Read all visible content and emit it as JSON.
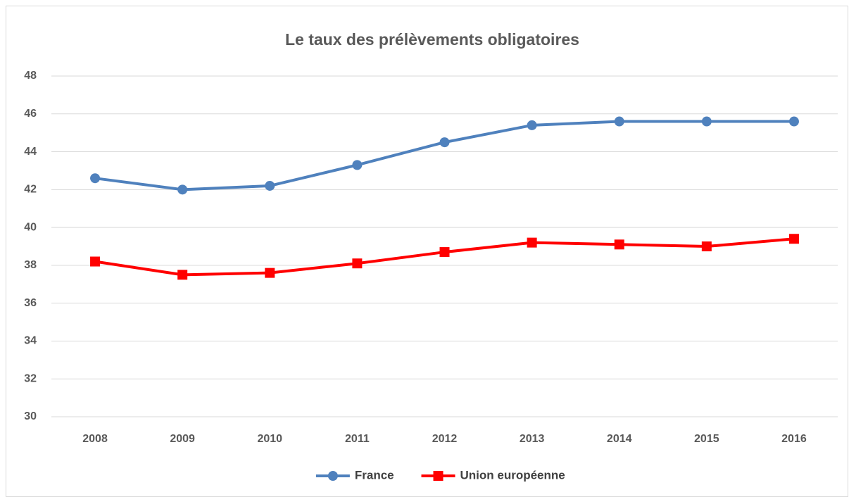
{
  "chart_data": {
    "type": "line",
    "title": "Le taux des prélèvements obligatoires",
    "categories": [
      "2008",
      "2009",
      "2010",
      "2011",
      "2012",
      "2013",
      "2014",
      "2015",
      "2016"
    ],
    "series": [
      {
        "name": "France",
        "color": "#4f81bd",
        "marker": "circle",
        "values": [
          42.6,
          42.0,
          42.2,
          43.3,
          44.5,
          45.4,
          45.6,
          45.6,
          45.6
        ]
      },
      {
        "name": "Union européenne",
        "color": "#ff0000",
        "marker": "square",
        "values": [
          38.2,
          37.5,
          37.6,
          38.1,
          38.7,
          39.2,
          39.1,
          39.0,
          39.4
        ]
      }
    ],
    "ylim": [
      30,
      48
    ],
    "yticks": [
      30,
      32,
      34,
      36,
      38,
      40,
      42,
      44,
      46,
      48
    ],
    "grid": true,
    "legend": "bottom"
  }
}
